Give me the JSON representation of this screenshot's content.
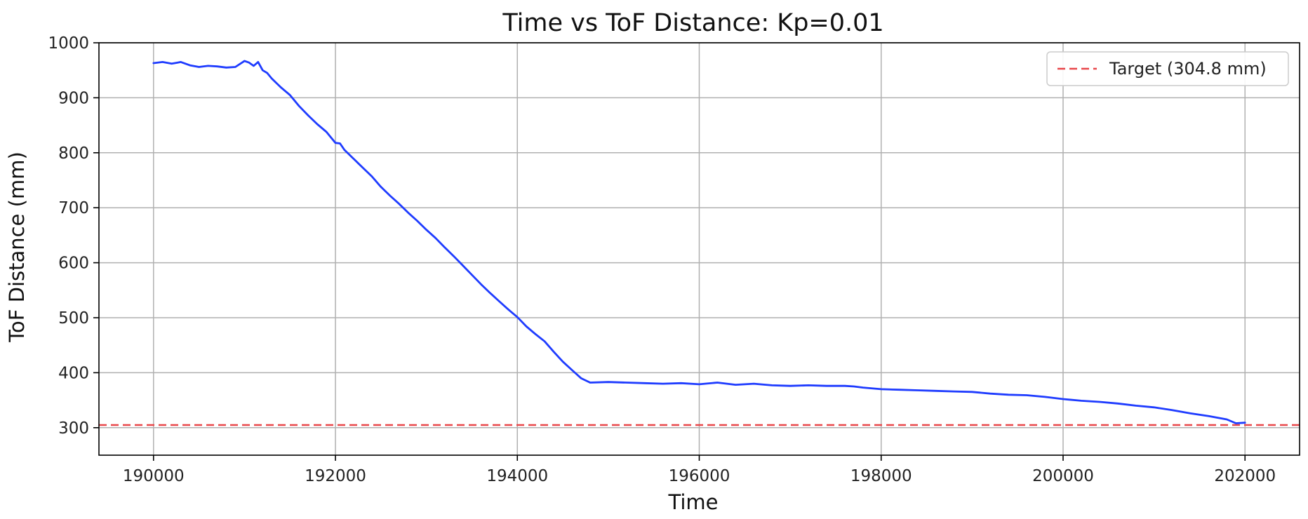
{
  "chart_data": {
    "type": "line",
    "title": "Time vs ToF Distance: Kp=0.01",
    "xlabel": "Time",
    "ylabel": "ToF Distance (mm)",
    "xlim": [
      189400,
      202600
    ],
    "ylim": [
      250,
      1000
    ],
    "xticks": [
      190000,
      192000,
      194000,
      196000,
      198000,
      200000,
      202000
    ],
    "yticks": [
      300,
      400,
      500,
      600,
      700,
      800,
      900,
      1000
    ],
    "grid": true,
    "legend_position": "top-right",
    "series": [
      {
        "color": "#1f3cff",
        "x": [
          190000,
          190100,
          190200,
          190300,
          190400,
          190500,
          190600,
          190700,
          190800,
          190900,
          191000,
          191050,
          191100,
          191150,
          191200,
          191250,
          191300,
          191400,
          191500,
          191600,
          191700,
          191800,
          191900,
          192000,
          192050,
          192100,
          192200,
          192300,
          192400,
          192500,
          192600,
          192700,
          192800,
          192900,
          193000,
          193100,
          193200,
          193300,
          193400,
          193500,
          193600,
          193700,
          193800,
          193900,
          194000,
          194100,
          194200,
          194300,
          194400,
          194500,
          194600,
          194700,
          194800,
          195000,
          195200,
          195400,
          195600,
          195800,
          196000,
          196200,
          196400,
          196600,
          196800,
          197000,
          197200,
          197400,
          197600,
          197700,
          197800,
          198000,
          198200,
          198400,
          198600,
          198800,
          199000,
          199200,
          199400,
          199600,
          199800,
          200000,
          200200,
          200400,
          200600,
          200800,
          201000,
          201200,
          201400,
          201600,
          201800,
          201900,
          202000
        ],
        "y": [
          963,
          965,
          962,
          965,
          959,
          956,
          958,
          957,
          955,
          956,
          967,
          964,
          958,
          965,
          950,
          945,
          935,
          919,
          905,
          885,
          868,
          852,
          838,
          818,
          817,
          805,
          789,
          773,
          757,
          738,
          722,
          707,
          691,
          676,
          660,
          645,
          628,
          612,
          595,
          578,
          561,
          545,
          530,
          515,
          501,
          484,
          470,
          457,
          438,
          420,
          405,
          390,
          382,
          383,
          382,
          381,
          380,
          381,
          379,
          382,
          378,
          380,
          377,
          376,
          377,
          376,
          376,
          375,
          373,
          370,
          369,
          368,
          367,
          366,
          365,
          362,
          360,
          359,
          356,
          352,
          349,
          347,
          344,
          340,
          337,
          332,
          326,
          321,
          315,
          308,
          309
        ]
      }
    ],
    "reference_lines": [
      {
        "label": "Target (304.8 mm)",
        "y": 304.8,
        "color": "#e8474a",
        "style": "dashed"
      }
    ]
  }
}
